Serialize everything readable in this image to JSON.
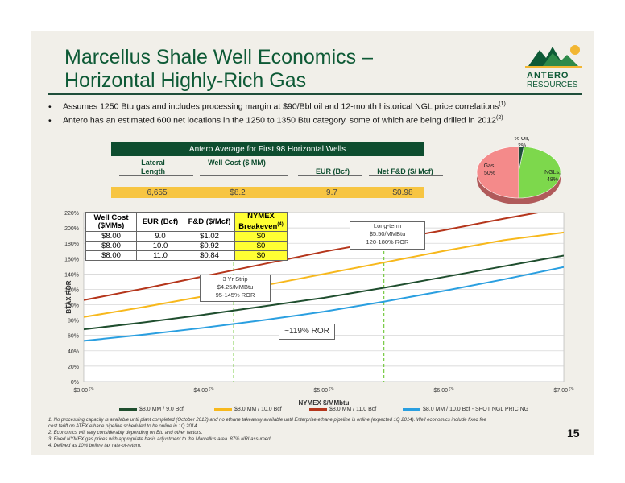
{
  "title_line1": "Marcellus Shale Well Economics –",
  "title_line2": "Horizontal Highly-Rich Gas",
  "logo": {
    "line1": "ANTERO",
    "line2": "RESOURCES"
  },
  "bullets": [
    {
      "text": "Assumes 1250 Btu gas and includes processing margin at $90/Bbl oil and 12-month historical NGL price correlations",
      "sup": "(1)"
    },
    {
      "text": "Antero has an estimated 600 net locations in the 1250 to 1350 Btu category, some of which are being drilled in 2012",
      "sup": "(2)"
    }
  ],
  "avg_table": {
    "header": "Antero Average for First 98 Horizontal Wells",
    "col1": "Lateral Length",
    "col2": "Well Cost ($ MM)",
    "col3": "EUR (Bcf)",
    "col4": "Net F&D ($/ Mcf)",
    "values": [
      "6,655",
      "$8.2",
      "9.7",
      "$0.98"
    ]
  },
  "pie": {
    "labels": [
      "% Oil, 2%",
      "NGLs, 48%",
      "Gas, 50%"
    ],
    "values": [
      2,
      48,
      50
    ],
    "colors": [
      "#1f4e3a",
      "#7dd84c",
      "#f48a8a"
    ]
  },
  "mini_table": {
    "headers": [
      "Well Cost ($MMs)",
      "EUR (Bcf)",
      "F&D ($/Mcf)",
      "NYMEX Breakeven"
    ],
    "breakeven_sup": "(4)",
    "rows": [
      [
        "$8.00",
        "9.0",
        "$1.02",
        "$0"
      ],
      [
        "$8.00",
        "10.0",
        "$0.92",
        "$0"
      ],
      [
        "$8.00",
        "11.0",
        "$0.84",
        "$0"
      ]
    ]
  },
  "callouts": {
    "longterm": [
      "Long-term",
      "$5.50/MMBtu",
      "120-180% ROR"
    ],
    "strip": [
      "3 Yr Strip",
      "$4.25/MMBtu",
      "95-145% ROR"
    ],
    "ror": "~119% ROR"
  },
  "chart_data": {
    "type": "line",
    "xlabel": "NYMEX $/MMbtu",
    "ylabel": "BTAX ROR",
    "xlim": [
      3.0,
      7.0
    ],
    "ylim": [
      0,
      220
    ],
    "x_ticks": [
      "$3.00",
      "$4.00",
      "$5.00",
      "$6.00",
      "$7.00"
    ],
    "x_tick_sups": [
      "(3)",
      "(3)",
      "(3)",
      "(3)",
      "(3)"
    ],
    "y_ticks": [
      "0%",
      "20%",
      "40%",
      "60%",
      "80%",
      "100%",
      "120%",
      "140%",
      "160%",
      "180%",
      "200%",
      "220%"
    ],
    "x": [
      3.0,
      3.5,
      4.0,
      4.5,
      5.0,
      5.5,
      6.0,
      6.5,
      7.0
    ],
    "series": [
      {
        "name": "$8.0 MM / 9.0 Bcf",
        "color": "#1f4e2e",
        "values": [
          68,
          77,
          87,
          98,
          109,
          122,
          136,
          150,
          164
        ]
      },
      {
        "name": "$8.0 MM / 10.0 Bcf",
        "color": "#f7b81c",
        "values": [
          84,
          97,
          111,
          125,
          140,
          155,
          170,
          184,
          194
        ]
      },
      {
        "name": "$8.0 MM / 11.0 Bcf",
        "color": "#b5361c",
        "values": [
          106,
          121,
          137,
          153,
          169,
          183,
          197,
          212,
          226
        ]
      },
      {
        "name": "$8.0 MM / 10.0 Bcf - SPOT NGL PRICING",
        "color": "#2a9fe0",
        "values": [
          53,
          61,
          70,
          80,
          91,
          104,
          118,
          133,
          149
        ]
      }
    ],
    "vlines": [
      4.25,
      5.5
    ]
  },
  "footnotes": [
    "1.   No processing capacity is available until plant completed (October 2012) and no ethane takeaway available until Enterprise ethane pipeline is online (expected 1Q 2014). Well economics include fixed fee",
    "      cost tariff on ATEX ethane pipeline scheduled to be online in 1Q 2014.",
    "2.   Economics will vary considerably depending on Btu and other factors.",
    "3.   Fixed NYMEX gas prices with appropriate basis adjustment to the Marcellus area. 87% NRI assumed.",
    "4.   Defined as 10% before tax rate-of-return."
  ],
  "page_number": "15"
}
